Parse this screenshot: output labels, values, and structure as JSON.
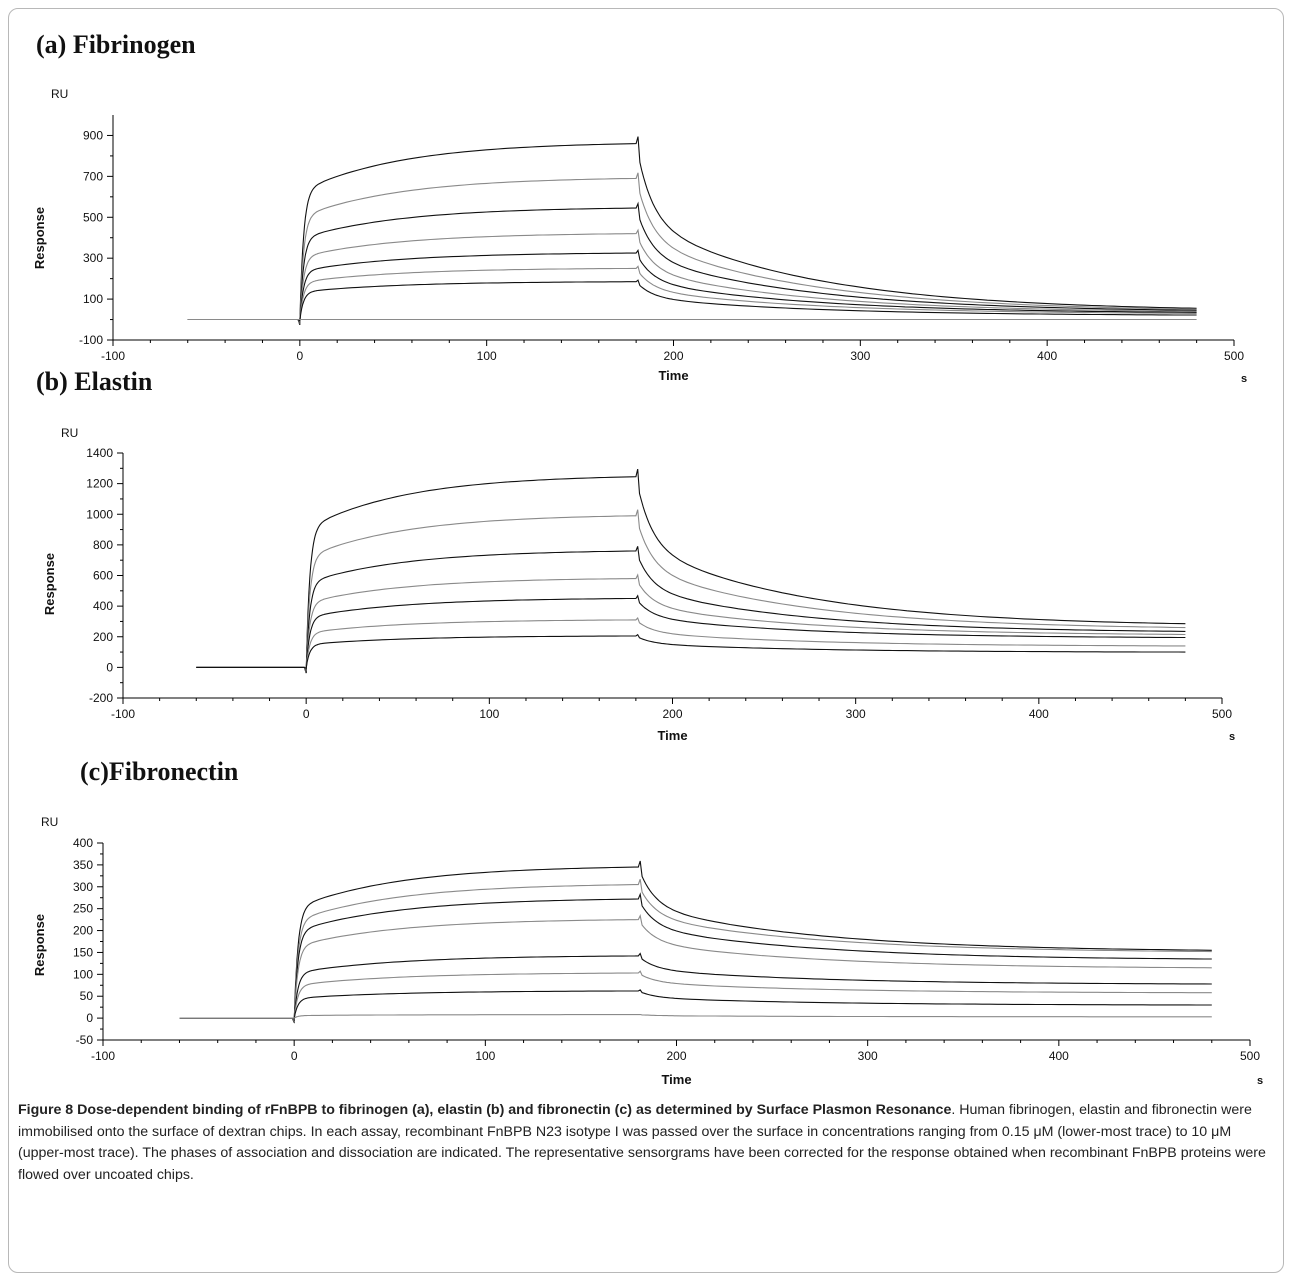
{
  "figure_label": "Figure 8",
  "caption_title": "Dose-dependent binding of rFnBPB to fibrinogen (a), elastin (b) and fibronectin (c) as determined by Surface Plasmon Resonance",
  "caption_title_end": ".",
  "caption_body": "Human fibrinogen, elastin and fibronectin were immobilised onto the surface of dextran chips. In each assay, recombinant FnBPB N23 isotype I was passed over the surface in concentrations ranging from 0.15 μM (lower-most trace) to 10 μM (upper-most trace). The phases of association and dissociation are indicated. The representative sensorgrams have been corrected for the response obtained when recombinant FnBPB proteins were flowed over uncoated chips.",
  "colors": {
    "trace_dark": "#111111",
    "trace_light": "#8a8a8a",
    "axis": "#000000"
  },
  "chart_data": [
    {
      "type": "line",
      "title": "(a) Fibrinogen",
      "ylabel": "Response",
      "yunit": "RU",
      "xlabel": "Time",
      "xunit": "s",
      "xlim": [
        -100,
        500
      ],
      "ylim": [
        -100,
        1000
      ],
      "xticks": [
        -100,
        0,
        100,
        200,
        300,
        400,
        500
      ],
      "yticks": [
        -100,
        100,
        300,
        500,
        700,
        900
      ],
      "association_start": 0,
      "dissociation_start": 180,
      "baseline_start": -60,
      "end": 480,
      "series": [
        {
          "plateau": 860,
          "end_value": 55
        },
        {
          "plateau": 690,
          "end_value": 50
        },
        {
          "plateau": 545,
          "end_value": 45
        },
        {
          "plateau": 420,
          "end_value": 40
        },
        {
          "plateau": 325,
          "end_value": 35
        },
        {
          "plateau": 250,
          "end_value": 30
        },
        {
          "plateau": 185,
          "end_value": 22
        },
        {
          "plateau": 0,
          "end_value": 0
        }
      ]
    },
    {
      "type": "line",
      "title": "(b) Elastin",
      "ylabel": "Response",
      "yunit": "RU",
      "xlabel": "Time",
      "xunit": "s",
      "xlim": [
        -100,
        500
      ],
      "ylim": [
        -200,
        1400
      ],
      "xticks": [
        -100,
        0,
        100,
        200,
        300,
        400,
        500
      ],
      "yticks": [
        -200,
        0,
        200,
        400,
        600,
        800,
        1000,
        1200,
        1400
      ],
      "association_start": 0,
      "dissociation_start": 180,
      "baseline_start": -60,
      "end": 480,
      "series": [
        {
          "plateau": 1245,
          "end_value": 285
        },
        {
          "plateau": 990,
          "end_value": 260
        },
        {
          "plateau": 760,
          "end_value": 235
        },
        {
          "plateau": 580,
          "end_value": 215
        },
        {
          "plateau": 450,
          "end_value": 195
        },
        {
          "plateau": 310,
          "end_value": 140
        },
        {
          "plateau": 205,
          "end_value": 100
        }
      ]
    },
    {
      "type": "line",
      "title": "(c)Fibronectin",
      "ylabel": "Response",
      "yunit": "RU",
      "xlabel": "Time",
      "xunit": "s",
      "xlim": [
        -100,
        500
      ],
      "ylim": [
        -50,
        400
      ],
      "xticks": [
        -100,
        0,
        100,
        200,
        300,
        400,
        500
      ],
      "yticks": [
        -50,
        0,
        50,
        100,
        150,
        200,
        250,
        300,
        350,
        400
      ],
      "association_start": 0,
      "dissociation_start": 180,
      "baseline_start": -60,
      "end": 480,
      "series": [
        {
          "plateau": 345,
          "end_value": 155
        },
        {
          "plateau": 305,
          "end_value": 152
        },
        {
          "plateau": 272,
          "end_value": 135
        },
        {
          "plateau": 225,
          "end_value": 115
        },
        {
          "plateau": 142,
          "end_value": 78
        },
        {
          "plateau": 103,
          "end_value": 58
        },
        {
          "plateau": 62,
          "end_value": 30
        },
        {
          "plateau": 8,
          "end_value": 3
        }
      ]
    }
  ]
}
